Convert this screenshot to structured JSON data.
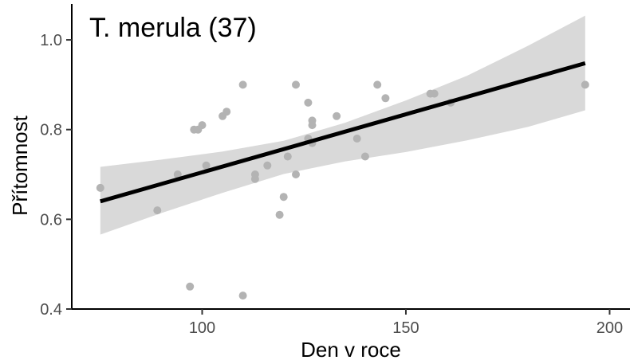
{
  "chart_data": {
    "type": "scatter",
    "title": "T. merula (37)",
    "xlabel": "Den v roce",
    "ylabel": "Přítomnost",
    "xlim": [
      68,
      205
    ],
    "ylim": [
      0.4,
      1.08
    ],
    "x_ticks": [
      {
        "value": 100,
        "label": "100"
      },
      {
        "value": 150,
        "label": "150"
      },
      {
        "value": 200,
        "label": "200"
      }
    ],
    "y_ticks": [
      {
        "value": 0.4,
        "label": "0.4"
      },
      {
        "value": 0.6,
        "label": "0.6"
      },
      {
        "value": 0.8,
        "label": "0.8"
      },
      {
        "value": 1.0,
        "label": "1.0"
      }
    ],
    "points": [
      {
        "x": 75,
        "y": 0.67
      },
      {
        "x": 89,
        "y": 0.62
      },
      {
        "x": 94,
        "y": 0.7
      },
      {
        "x": 97,
        "y": 0.45
      },
      {
        "x": 98,
        "y": 0.8
      },
      {
        "x": 99,
        "y": 0.8
      },
      {
        "x": 100,
        "y": 0.81
      },
      {
        "x": 101,
        "y": 0.72
      },
      {
        "x": 105,
        "y": 0.83
      },
      {
        "x": 106,
        "y": 0.84
      },
      {
        "x": 110,
        "y": 0.9
      },
      {
        "x": 110,
        "y": 0.43
      },
      {
        "x": 113,
        "y": 0.7
      },
      {
        "x": 113,
        "y": 0.69
      },
      {
        "x": 116,
        "y": 0.72
      },
      {
        "x": 119,
        "y": 0.61
      },
      {
        "x": 120,
        "y": 0.65
      },
      {
        "x": 121,
        "y": 0.74
      },
      {
        "x": 123,
        "y": 0.9
      },
      {
        "x": 123,
        "y": 0.7
      },
      {
        "x": 126,
        "y": 0.86
      },
      {
        "x": 126,
        "y": 0.78
      },
      {
        "x": 127,
        "y": 0.82
      },
      {
        "x": 127,
        "y": 0.81
      },
      {
        "x": 127,
        "y": 0.77
      },
      {
        "x": 133,
        "y": 0.83
      },
      {
        "x": 138,
        "y": 0.78
      },
      {
        "x": 140,
        "y": 0.74
      },
      {
        "x": 143,
        "y": 0.9
      },
      {
        "x": 145,
        "y": 0.87
      },
      {
        "x": 156,
        "y": 0.88
      },
      {
        "x": 157,
        "y": 0.88
      },
      {
        "x": 161,
        "y": 0.86
      },
      {
        "x": 194,
        "y": 0.9
      }
    ],
    "fit_line": {
      "x": [
        75,
        194
      ],
      "y": [
        0.64,
        0.948
      ]
    },
    "confidence_band": {
      "x": [
        75,
        90,
        105,
        120,
        135,
        150,
        165,
        180,
        194
      ],
      "upper": [
        0.717,
        0.733,
        0.751,
        0.775,
        0.815,
        0.865,
        0.92,
        0.987,
        1.054
      ],
      "lower": [
        0.566,
        0.614,
        0.659,
        0.701,
        0.729,
        0.75,
        0.776,
        0.806,
        0.843
      ]
    },
    "grid": false,
    "colors": {
      "points": "#b3b3b3",
      "line": "#000000",
      "band": "#d9d9d9",
      "axis": "#000000"
    }
  }
}
